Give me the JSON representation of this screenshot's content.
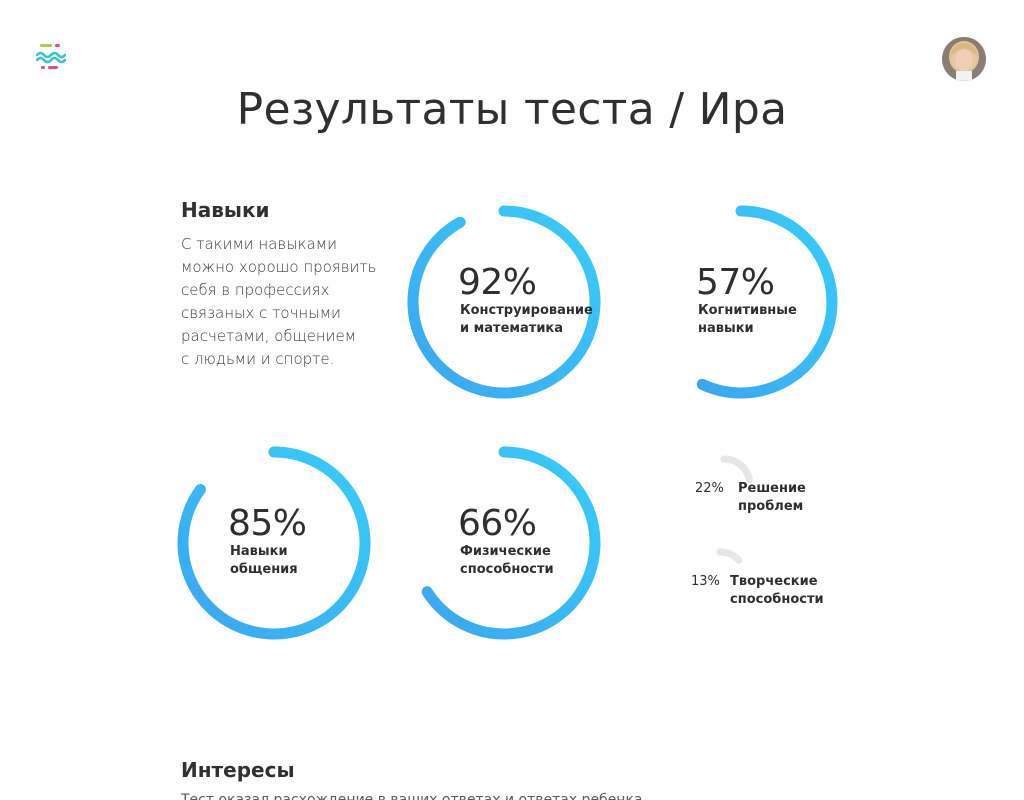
{
  "header": {
    "title": "Результаты теста / Ира",
    "logo_icon": "app-logo-icon",
    "avatar_icon": "user-avatar"
  },
  "colors": {
    "ring_start": "#3aa7f0",
    "ring_end": "#37cdfb",
    "mini_track": "#e6e6e6",
    "text": "#2f2f33"
  },
  "skills": {
    "heading": "Навыки",
    "description_lines": [
      "С такими навыками",
      "можно хорошо проявить",
      "себя в профессиях",
      "связаных с точными",
      "расчетами, общением",
      "с людьми и спорте."
    ],
    "rings": [
      {
        "percent": 92,
        "value_label": "92%",
        "label_lines": [
          "Конструирование",
          "и математика"
        ]
      },
      {
        "percent": 57,
        "value_label": "57%",
        "label_lines": [
          "Когнитивные",
          "навыки"
        ]
      },
      {
        "percent": 85,
        "value_label": "85%",
        "label_lines": [
          "Навыки",
          "общения"
        ]
      },
      {
        "percent": 66,
        "value_label": "66%",
        "label_lines": [
          "Физические",
          "способности"
        ]
      }
    ],
    "minor": [
      {
        "percent": 22,
        "value_label": "22%",
        "label_lines": [
          "Решение",
          "проблем"
        ]
      },
      {
        "percent": 13,
        "value_label": "13%",
        "label_lines": [
          "Творческие",
          "способности"
        ]
      }
    ]
  },
  "interests": {
    "heading": "Интересы",
    "text_partial": "Тест оказал расхождение в ваших ответах и ответах ребенка"
  }
}
